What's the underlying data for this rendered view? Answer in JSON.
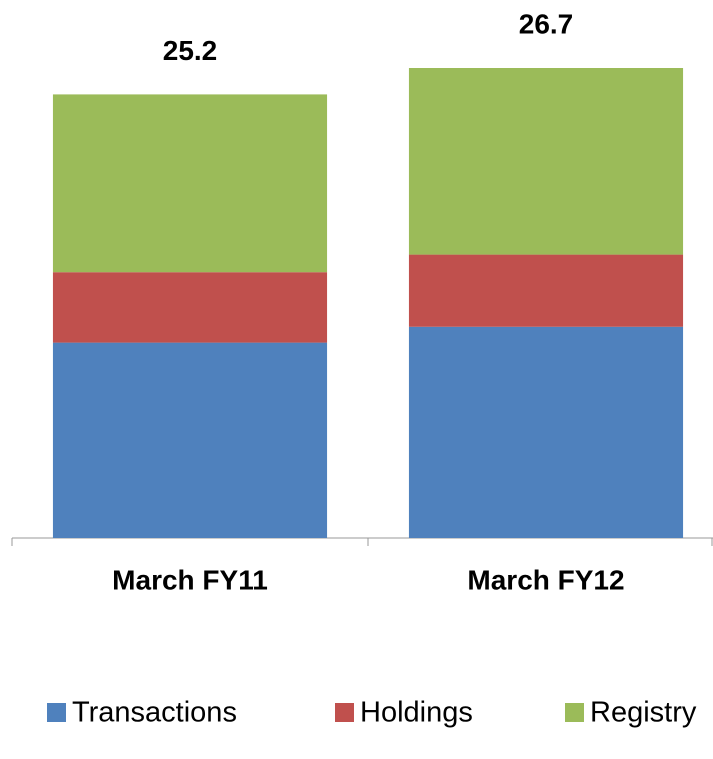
{
  "chart_data": {
    "type": "stacked_bar",
    "categories": [
      "March FY11",
      "March FY12"
    ],
    "series": [
      {
        "name": "Transactions",
        "color": "#4f81bd",
        "values": [
          11.1,
          12.0
        ]
      },
      {
        "name": "Holdings",
        "color": "#c0504d",
        "values": [
          4.0,
          4.1
        ]
      },
      {
        "name": "Registry",
        "color": "#9bbb59",
        "values": [
          10.1,
          10.6
        ]
      }
    ],
    "totals": [
      25.2,
      26.7
    ],
    "legend": "bottom"
  }
}
